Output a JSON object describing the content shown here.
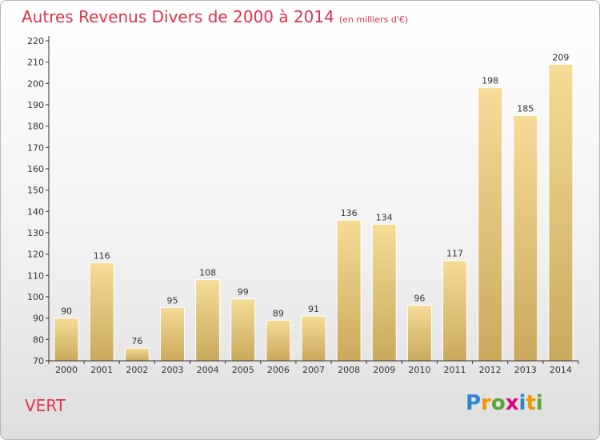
{
  "header": {
    "title": "Autres Revenus Divers de 2000 à 2014",
    "subtitle": "(en milliers d'€)"
  },
  "footer": {
    "place": "VERT",
    "logo_letters": [
      "P",
      "r",
      "o",
      "x",
      "i",
      "t",
      "i"
    ],
    "logo_colors": [
      "#2e86d0",
      "#f39200",
      "#5aa832",
      "#e2007a",
      "#2e86d0",
      "#f39200",
      "#5aa832"
    ]
  },
  "chart_data": {
    "type": "bar",
    "title": "Autres Revenus Divers de 2000 à 2014",
    "subtitle": "(en milliers d'€)",
    "categories": [
      "2000",
      "2001",
      "2002",
      "2003",
      "2004",
      "2005",
      "2006",
      "2007",
      "2008",
      "2009",
      "2010",
      "2011",
      "2012",
      "2013",
      "2014"
    ],
    "values": [
      90,
      116,
      76,
      95,
      108,
      99,
      89,
      91,
      136,
      134,
      96,
      117,
      198,
      185,
      209
    ],
    "ylim": [
      70,
      220
    ],
    "yticks": [
      70,
      80,
      90,
      100,
      110,
      120,
      130,
      140,
      150,
      160,
      170,
      180,
      190,
      200,
      210,
      220
    ],
    "grid": false,
    "bar_color_top": "#f6dc98",
    "bar_color_bottom": "#c9a95c",
    "axis_color": "#333333"
  }
}
